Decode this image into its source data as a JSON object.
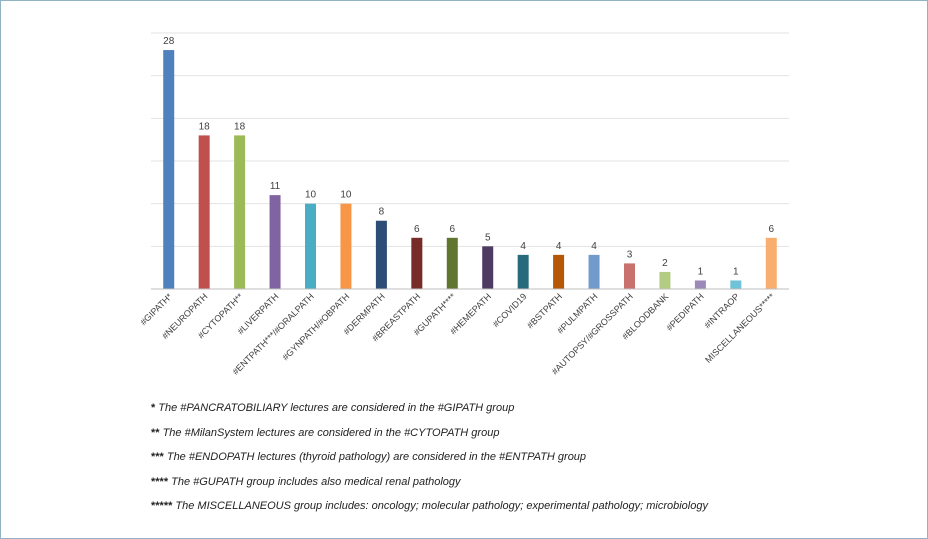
{
  "chart_data": {
    "type": "bar",
    "categories": [
      "#GIPATH*",
      "#NEUROPATH",
      "#CYTOPATH**",
      "#LIVERPATH",
      "#ENTPATH***/#ORALPATH",
      "#GYNPATH/#OBPATH",
      "#DERMPATH",
      "#BREASTPATH",
      "#GUPATH****",
      "#HEMEPATH",
      "#COVID19",
      "#BSTPATH",
      "#PULMPATH",
      "#AUTOPSY/#GROSSPATH",
      "#BLOODBANK",
      "#PEDIPATH",
      "#INTRAOP",
      "MISCELLANEOUS*****"
    ],
    "values": [
      28,
      18,
      18,
      11,
      10,
      10,
      8,
      6,
      6,
      5,
      4,
      4,
      4,
      3,
      2,
      1,
      1,
      6
    ],
    "data_labels": [
      "28",
      "18",
      "18",
      "11",
      "10",
      "10",
      "8",
      "6",
      "6",
      "5",
      "4",
      "4",
      "4",
      "3",
      "2",
      "1",
      "1",
      "6"
    ],
    "colors": [
      "#4f81bd",
      "#c0504d",
      "#9bbb59",
      "#8064a2",
      "#4bacc6",
      "#f79646",
      "#2c4d75",
      "#772c2a",
      "#5f7530",
      "#4d3b62",
      "#276a7c",
      "#b65708",
      "#729aca",
      "#c9716c",
      "#b2cc84",
      "#9d89b7",
      "#6fc2d7",
      "#f9ae6f"
    ],
    "ylim": [
      0,
      30
    ],
    "grid": true,
    "legend": "none"
  },
  "footnotes": [
    {
      "stars": "*",
      "text": "The #PANCRATOBILIARY lectures are considered in the #GIPATH group"
    },
    {
      "stars": "**",
      "text": "The #MilanSystem lectures are considered in the #CYTOPATH group"
    },
    {
      "stars": "***",
      "text": "The #ENDOPATH lectures (thyroid pathology) are considered in the #ENTPATH group"
    },
    {
      "stars": "****",
      "text": "The #GUPATH group includes also medical renal pathology"
    },
    {
      "stars": "*****",
      "text": "The MISCELLANEOUS group includes: oncology; molecular pathology; experimental pathology; microbiology"
    }
  ]
}
